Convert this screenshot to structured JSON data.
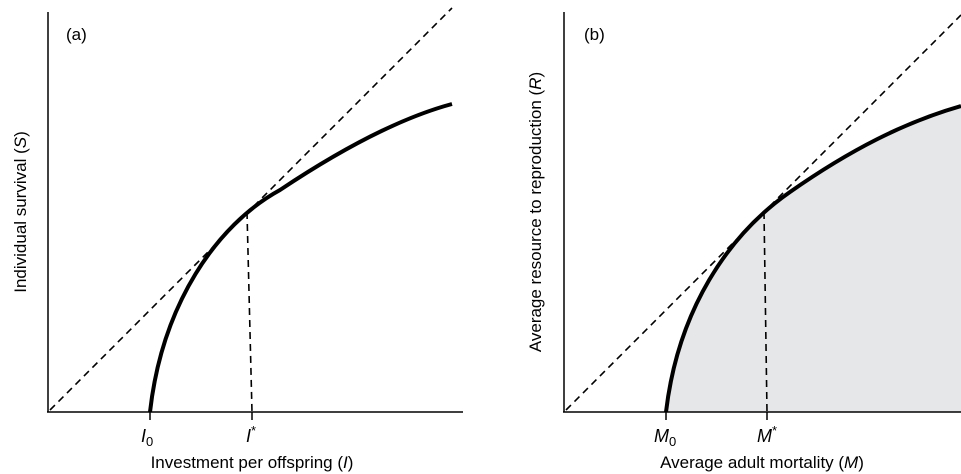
{
  "panel_a": {
    "label": "(a)",
    "xlabel": {
      "prefix": "Investment per offspring (",
      "symbol": "I",
      "suffix": ")"
    },
    "ylabel": {
      "prefix": "Individual survival (",
      "symbol": "S",
      "suffix": ")"
    },
    "ticks": {
      "i0": {
        "symbol": "I",
        "sub": "0"
      },
      "istar": {
        "symbol": "I",
        "sup": "*"
      }
    }
  },
  "panel_b": {
    "label": "(b)",
    "xlabel": {
      "prefix": "Average adult mortality (",
      "symbol": "M",
      "suffix": ")"
    },
    "ylabel": {
      "prefix": "Average resource to reproduction (",
      "symbol": "R",
      "suffix": ")"
    },
    "ticks": {
      "m0": {
        "symbol": "M",
        "sub": "0"
      },
      "mstar": {
        "symbol": "M",
        "sup": "*"
      }
    }
  },
  "colors": {
    "line": "#000000",
    "shade": "#e6e7e9",
    "background": "#ffffff"
  }
}
